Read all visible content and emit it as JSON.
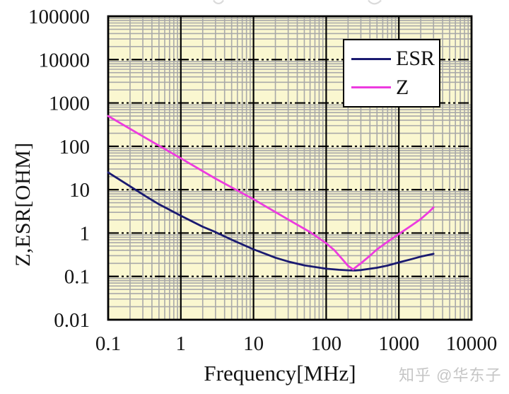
{
  "figure": {
    "watermark": "知乎 @华东子"
  },
  "chart_data": {
    "type": "line",
    "title": "",
    "xlabel": "Frequency[MHz]",
    "ylabel": "Z,ESR[OHM]",
    "x_scale": "log",
    "y_scale": "log",
    "xlim": [
      0.1,
      10000
    ],
    "ylim": [
      0.01,
      100000
    ],
    "x_ticks": [
      0.1,
      1,
      10,
      100,
      1000,
      10000
    ],
    "x_tick_labels": [
      "0.1",
      "1",
      "10",
      "100",
      "1000",
      "10000"
    ],
    "y_ticks": [
      0.01,
      0.1,
      1,
      10,
      100,
      1000,
      10000,
      100000
    ],
    "y_tick_labels": [
      "0.01",
      "0.1",
      "1",
      "10",
      "100",
      "1000",
      "10000",
      "100000"
    ],
    "grid": {
      "plot_background": "#faf7d0",
      "minor_color": "#a9a9a9",
      "major_color": "#000000",
      "border_color": "#000000",
      "horizontal_major_style": "dash-dot",
      "vertical_major_style": "solid",
      "minor_gridlines": true
    },
    "legend": {
      "position": "top-right",
      "entries": [
        {
          "label": "ESR",
          "color": "#1a1a70"
        },
        {
          "label": "Z",
          "color": "#ed3bdf"
        }
      ]
    },
    "series": [
      {
        "name": "ESR",
        "color": "#1a1a70",
        "points": [
          [
            0.1,
            25
          ],
          [
            0.2,
            12
          ],
          [
            0.33,
            7.0
          ],
          [
            0.5,
            4.6
          ],
          [
            1,
            2.5
          ],
          [
            2,
            1.4
          ],
          [
            3,
            1.05
          ],
          [
            5,
            0.7
          ],
          [
            10,
            0.42
          ],
          [
            20,
            0.27
          ],
          [
            30,
            0.22
          ],
          [
            50,
            0.18
          ],
          [
            100,
            0.15
          ],
          [
            150,
            0.142
          ],
          [
            200,
            0.138
          ],
          [
            250,
            0.137
          ],
          [
            300,
            0.14
          ],
          [
            500,
            0.158
          ],
          [
            700,
            0.178
          ],
          [
            1000,
            0.21
          ],
          [
            1500,
            0.25
          ],
          [
            2000,
            0.285
          ],
          [
            3000,
            0.33
          ]
        ]
      },
      {
        "name": "Z",
        "color": "#ed3bdf",
        "points": [
          [
            0.1,
            500
          ],
          [
            0.3,
            170
          ],
          [
            1,
            53
          ],
          [
            3,
            18
          ],
          [
            10,
            6.0
          ],
          [
            30,
            2.05
          ],
          [
            60,
            1.05
          ],
          [
            100,
            0.58
          ],
          [
            130,
            0.4
          ],
          [
            160,
            0.27
          ],
          [
            200,
            0.175
          ],
          [
            235,
            0.145
          ],
          [
            270,
            0.175
          ],
          [
            300,
            0.2
          ],
          [
            400,
            0.3
          ],
          [
            500,
            0.42
          ],
          [
            700,
            0.63
          ],
          [
            1000,
            0.95
          ],
          [
            1500,
            1.5
          ],
          [
            2000,
            2.1
          ],
          [
            2500,
            2.9
          ],
          [
            3000,
            3.9
          ]
        ]
      }
    ]
  }
}
